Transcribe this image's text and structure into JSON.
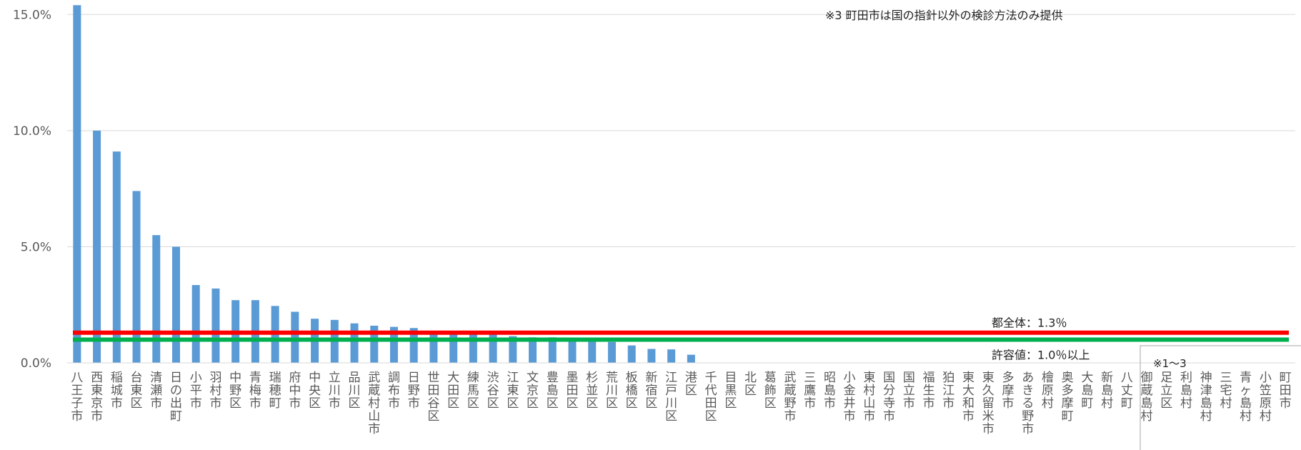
{
  "chart_data": {
    "type": "bar",
    "title": "",
    "xlabel": "",
    "ylabel": "",
    "ylim": [
      0,
      15.5
    ],
    "yticks": [
      0,
      5,
      10,
      15
    ],
    "ytick_labels": [
      "0.0%",
      "5.0%",
      "10.0%",
      "15.0%"
    ],
    "grid": true,
    "bar_color": "#5B9BD5",
    "categories": [
      "八王子市",
      "西東京市",
      "稲城市",
      "台東区",
      "清瀬市",
      "日の出町",
      "小平市",
      "羽村市",
      "中野区",
      "青梅市",
      "瑞穂町",
      "府中市",
      "中央区",
      "立川市",
      "品川区",
      "武蔵村山市",
      "調布市",
      "日野市",
      "世田谷区",
      "大田区",
      "練馬区",
      "渋谷区",
      "江東区",
      "文京区",
      "豊島区",
      "墨田区",
      "杉並区",
      "荒川区",
      "板橋区",
      "新宿区",
      "江戸川区",
      "港区",
      "千代田区",
      "目黒区",
      "北区",
      "葛飾区",
      "武蔵野市",
      "三鷹市",
      "昭島市",
      "小金井市",
      "東村山市",
      "国分寺市",
      "国立市",
      "福生市",
      "狛江市",
      "東大和市",
      "東久留米市",
      "多摩市",
      "あきる野市",
      "檜原村",
      "奥多摩町",
      "大島町",
      "新島村",
      "八丈町",
      "御蔵島村",
      "足立区",
      "利島村",
      "神津島村",
      "三宅村",
      "青ヶ島村",
      "小笠原村",
      "町田市"
    ],
    "values": [
      15.4,
      10.0,
      9.1,
      7.4,
      5.5,
      5.0,
      3.35,
      3.2,
      2.7,
      2.7,
      2.45,
      2.2,
      1.9,
      1.85,
      1.7,
      1.6,
      1.55,
      1.5,
      1.3,
      1.3,
      1.3,
      1.25,
      1.15,
      1.1,
      1.1,
      1.05,
      1.0,
      0.9,
      0.75,
      0.6,
      0.58,
      0.35,
      0,
      0,
      0,
      0,
      0,
      0,
      0,
      0,
      0,
      0,
      0,
      0,
      0,
      0,
      0,
      0,
      0,
      0,
      0,
      0,
      0,
      0,
      0,
      0,
      0,
      0,
      0,
      0,
      0,
      0
    ],
    "reference_lines": [
      {
        "name": "都全体",
        "value": 1.3,
        "color": "#FF0000",
        "label": "都全体：1.3％"
      },
      {
        "name": "許容値",
        "value": 1.0,
        "color": "#00B050",
        "label": "許容値：1.0％以上"
      }
    ],
    "annotations": {
      "note3": "※3 町田市は国の指針以外の検診方法のみ提供",
      "note1_3": "※1～3"
    }
  }
}
